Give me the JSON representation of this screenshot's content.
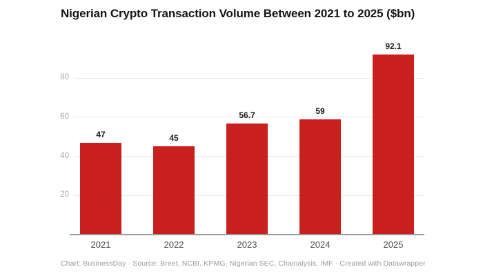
{
  "header": {
    "title": "Nigerian Crypto Transaction Volume Between 2021 to 2025 ($bn)"
  },
  "footer": {
    "text": "Chart: BusinessDay · Source: Breet, NCBI, KPMG, Nigerian SEC, Chainalysis, IMF · Created with Datawrapper"
  },
  "colors": {
    "bar": "#c7201d",
    "grid": "#e9e9e9",
    "axis_line": "#999999",
    "tick_label": "#a8a8a8",
    "x_label": "#4a4a4a",
    "value_label": "#1a1a1a",
    "footer_text": "#9b9b9b",
    "title_text": "#141414",
    "background": "#ffffff"
  },
  "chart_data": {
    "type": "bar",
    "title": "Nigerian Crypto Transaction Volume Between 2021 to 2025 ($bn)",
    "categories": [
      "2021",
      "2022",
      "2023",
      "2024",
      "2025"
    ],
    "values": [
      47,
      45,
      56.7,
      59,
      92.1
    ],
    "value_labels": [
      "47",
      "45",
      "56.7",
      "59",
      "92.1"
    ],
    "xlabel": "",
    "ylabel": "",
    "ylim": [
      0,
      95
    ],
    "yticks": [
      20,
      40,
      60,
      80
    ],
    "grid": "horizontal",
    "legend": "none",
    "bar_color": "#c7201d"
  }
}
